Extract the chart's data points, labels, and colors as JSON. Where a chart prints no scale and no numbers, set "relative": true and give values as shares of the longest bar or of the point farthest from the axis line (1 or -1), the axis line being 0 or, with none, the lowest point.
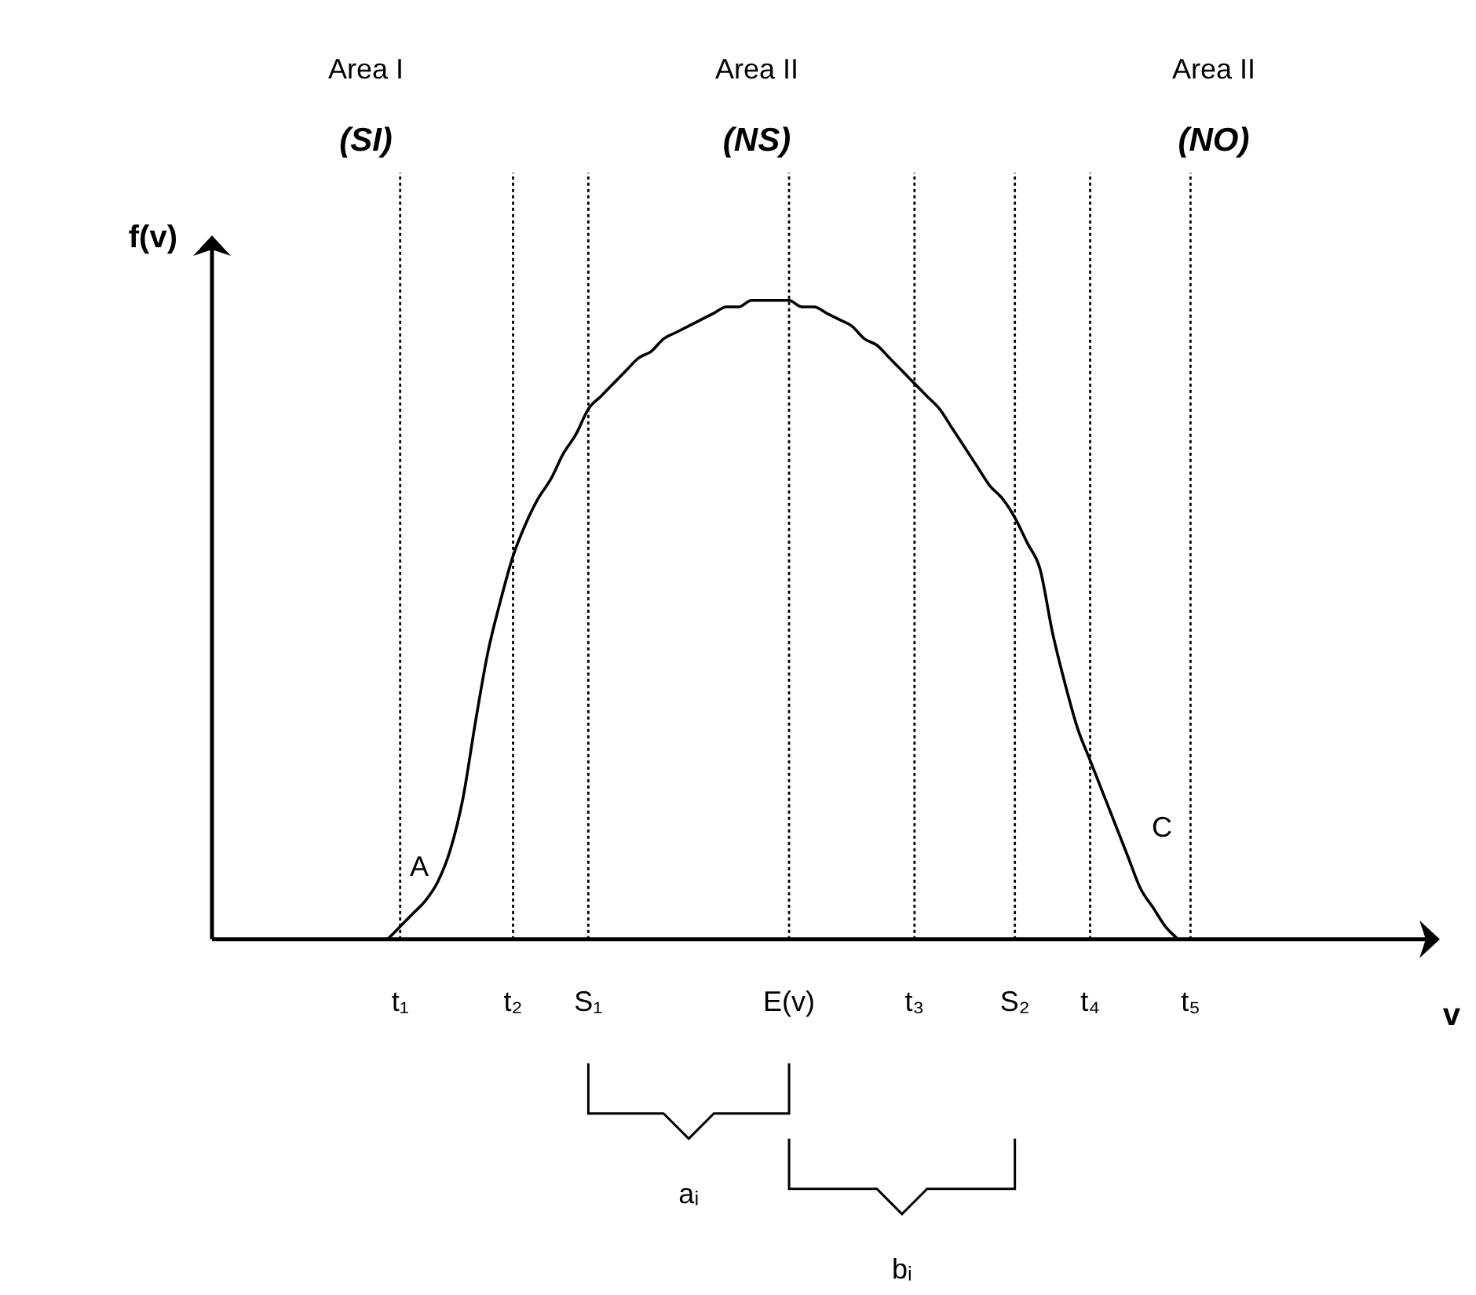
{
  "chart_data": {
    "type": "line",
    "relative": true,
    "xlabel": "v",
    "ylabel": "f(v)",
    "categories": [
      null,
      null,
      null,
      null,
      null,
      null,
      null,
      null,
      null,
      null,
      null,
      null,
      null,
      null,
      null,
      "t₁",
      null,
      null,
      null,
      null,
      null,
      null,
      null,
      null,
      "t₂",
      null,
      null,
      null,
      null,
      null,
      "S₁",
      null,
      null,
      null,
      null,
      null,
      null,
      null,
      null,
      null,
      null,
      null,
      null,
      null,
      null,
      null,
      "E(v)",
      null,
      null,
      null,
      null,
      null,
      null,
      null,
      null,
      null,
      "t₃",
      null,
      null,
      null,
      null,
      null,
      null,
      null,
      "S₂",
      null,
      null,
      null,
      null,
      null,
      "t₄",
      null,
      null,
      null,
      null,
      null,
      null,
      null,
      "t₅",
      null,
      null,
      null,
      null,
      null,
      null,
      null,
      null,
      null,
      null,
      null,
      null,
      null,
      null,
      null,
      null,
      null,
      null
    ],
    "series": [
      {
        "color": "#000000",
        "values": [
          null,
          null,
          null,
          null,
          null,
          null,
          null,
          null,
          null,
          null,
          null,
          null,
          null,
          null,
          0,
          0.02,
          0.04,
          0.06,
          0.09,
          0.14,
          0.22,
          0.34,
          0.45,
          0.53,
          0.6,
          0.65,
          0.69,
          0.72,
          0.76,
          0.79,
          0.83,
          0.85,
          0.87,
          0.89,
          0.91,
          0.92,
          0.94,
          0.95,
          0.96,
          0.97,
          0.98,
          0.99,
          0.99,
          1,
          1,
          1,
          1,
          0.99,
          0.99,
          0.98,
          0.97,
          0.96,
          0.94,
          0.93,
          0.91,
          0.89,
          0.87,
          0.85,
          0.83,
          0.8,
          0.77,
          0.74,
          0.71,
          0.69,
          0.66,
          0.62,
          0.58,
          0.48,
          0.4,
          0.33,
          0.28,
          0.23,
          0.18,
          0.13,
          0.08,
          0.05,
          0.02,
          0,
          null,
          null,
          null,
          null,
          null,
          null,
          null,
          null,
          null,
          null,
          null,
          null,
          null,
          null,
          null,
          null,
          null,
          null,
          null
        ]
      }
    ],
    "ref_lines": [
      {
        "axis": "x",
        "value": "t₁",
        "line_style": "dotted",
        "color": "#000000"
      },
      {
        "axis": "x",
        "value": "t₂",
        "line_style": "dotted",
        "color": "#000000"
      },
      {
        "axis": "x",
        "value": "S₁",
        "line_style": "dotted",
        "color": "#000000"
      },
      {
        "axis": "x",
        "value": "E(v)",
        "line_style": "dotted",
        "color": "#000000"
      },
      {
        "axis": "x",
        "value": "t₃",
        "line_style": "dotted",
        "color": "#000000"
      },
      {
        "axis": "x",
        "value": "S₂",
        "line_style": "dotted",
        "color": "#000000"
      },
      {
        "axis": "x",
        "value": "t₄",
        "line_style": "dotted",
        "color": "#000000"
      },
      {
        "axis": "x",
        "value": "t₅",
        "line_style": "dotted",
        "color": "#000000"
      }
    ],
    "annotations": [
      "Area I",
      "(SI)",
      "Area II",
      "(NS)",
      "Area II",
      "(NO)",
      "A",
      "C",
      "aᵢ",
      "bᵢ"
    ],
    "grid": false,
    "legend": false,
    "line_style": "solid",
    "marker": "none"
  }
}
